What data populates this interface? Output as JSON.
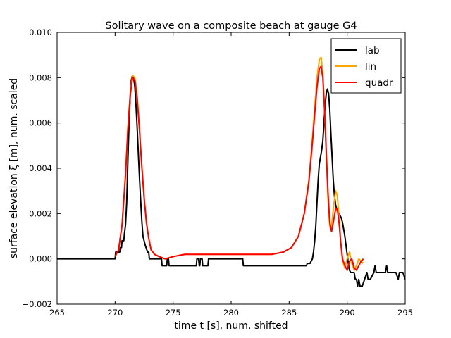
{
  "chart_data": {
    "type": "line",
    "title": "Solitary wave on a composite beach at gauge G4",
    "xlabel": "time  t [s], num. shifted",
    "ylabel": "surface elevation ξ [m], num. scaled",
    "xlim": [
      265,
      295
    ],
    "ylim": [
      -0.002,
      0.01
    ],
    "xticks": [
      265,
      270,
      275,
      280,
      285,
      290,
      295
    ],
    "yticks": [
      -0.002,
      0.0,
      0.002,
      0.004,
      0.006,
      0.008,
      0.01
    ],
    "xtick_labels": [
      "265",
      "270",
      "275",
      "280",
      "285",
      "290",
      "295"
    ],
    "ytick_labels": [
      "−0.002",
      "0.000",
      "0.002",
      "0.004",
      "0.006",
      "0.008",
      "0.010"
    ],
    "grid": false,
    "legend_position": "top-right",
    "series": [
      {
        "name": "lab",
        "color": "#000000",
        "x": [
          265.0,
          270.0,
          270.05,
          270.4,
          270.45,
          270.55,
          270.6,
          270.75,
          270.8,
          270.9,
          271.0,
          271.1,
          271.2,
          271.3,
          271.4,
          271.5,
          271.6,
          271.7,
          271.8,
          271.9,
          272.0,
          272.1,
          272.2,
          272.3,
          272.4,
          272.6,
          272.8,
          272.9,
          272.95,
          273.4,
          273.5,
          274.0,
          274.05,
          274.45,
          274.5,
          274.6,
          274.65,
          276.0,
          276.05,
          277.0,
          277.05,
          277.2,
          277.25,
          277.3,
          277.35,
          277.5,
          277.55,
          278.0,
          278.05,
          281.0,
          281.05,
          286.5,
          286.55,
          286.8,
          286.9,
          287.0,
          287.1,
          287.2,
          287.3,
          287.4,
          287.5,
          287.6,
          287.7,
          287.8,
          287.9,
          288.0,
          288.1,
          288.2,
          288.3,
          288.4,
          288.5,
          288.6,
          288.7,
          288.8,
          288.9,
          289.0,
          289.1,
          289.2,
          289.3,
          289.4,
          289.5,
          289.6,
          289.7,
          289.8,
          289.9,
          290.0,
          290.1,
          290.2,
          290.3,
          290.4,
          290.5,
          290.6,
          290.7,
          290.8,
          290.9,
          291.0,
          291.1,
          291.2,
          291.3,
          291.5,
          291.7,
          291.8,
          292.0,
          292.3,
          292.4,
          292.5,
          292.6,
          292.8,
          293.0,
          293.3,
          293.4,
          293.5,
          293.6,
          293.8,
          294.0,
          294.2,
          294.4,
          294.5,
          294.6,
          294.8,
          295.0
        ],
        "values": [
          0.0,
          0.0,
          0.0003,
          0.0003,
          0.0005,
          0.0005,
          0.0008,
          0.0008,
          0.0011,
          0.0015,
          0.0025,
          0.0043,
          0.006,
          0.0072,
          0.0079,
          0.0081,
          0.008,
          0.0076,
          0.0068,
          0.0058,
          0.0047,
          0.0036,
          0.0026,
          0.0017,
          0.001,
          0.0006,
          0.0003,
          0.0003,
          0.0,
          0.0,
          0.0,
          0.0,
          -0.0003,
          -0.0003,
          0.0,
          0.0,
          -0.0003,
          -0.0003,
          -0.0003,
          -0.0003,
          0.0,
          0.0,
          -0.0003,
          -0.0003,
          0.0,
          0.0,
          -0.0003,
          -0.0003,
          0.0,
          0.0,
          -0.0003,
          -0.0003,
          -0.0002,
          -0.0002,
          -0.0001,
          0.0,
          0.0003,
          0.0008,
          0.0015,
          0.0025,
          0.0035,
          0.0042,
          0.0045,
          0.0048,
          0.0052,
          0.006,
          0.0068,
          0.0073,
          0.0075,
          0.0073,
          0.0066,
          0.0055,
          0.0045,
          0.0035,
          0.0028,
          0.0024,
          0.0022,
          0.0021,
          0.002,
          0.0019,
          0.0018,
          0.0016,
          0.0013,
          0.001,
          0.0006,
          0.0002,
          -0.0002,
          -0.0005,
          -0.0006,
          -0.0006,
          -0.0006,
          -0.0006,
          -0.0009,
          -0.0009,
          -0.0012,
          -0.0009,
          -0.0012,
          -0.0012,
          -0.0012,
          -0.0009,
          -0.0006,
          -0.0009,
          -0.0009,
          -0.0006,
          -0.0003,
          -0.0006,
          -0.0006,
          -0.0006,
          -0.0006,
          -0.0006,
          -0.0003,
          -0.0006,
          -0.0006,
          -0.0006,
          -0.0006,
          -0.0006,
          -0.0009,
          -0.0006,
          -0.0006,
          -0.0006,
          -0.0009
        ]
      },
      {
        "name": "lin",
        "color": "#ffa500",
        "x": [
          270.0,
          270.3,
          270.6,
          270.9,
          271.1,
          271.3,
          271.5,
          271.7,
          271.9,
          272.1,
          272.3,
          272.5,
          272.7,
          272.9,
          273.1,
          273.4,
          273.8,
          274.3,
          275.0,
          276.0,
          278.0,
          280.0,
          282.0,
          283.5,
          284.5,
          285.2,
          285.8,
          286.3,
          286.7,
          287.0,
          287.2,
          287.4,
          287.6,
          287.75,
          287.9,
          288.05,
          288.2,
          288.35,
          288.5,
          288.65,
          288.8,
          289.0,
          289.15,
          289.3,
          289.45,
          289.6,
          289.8,
          290.0,
          290.2,
          290.4,
          290.6,
          290.8,
          291.0,
          291.2,
          291.4
        ],
        "values": [
          0.0001,
          0.0004,
          0.0015,
          0.0038,
          0.0058,
          0.0073,
          0.0081,
          0.008,
          0.0072,
          0.0057,
          0.0041,
          0.0027,
          0.0016,
          0.0009,
          0.0004,
          0.0002,
          0.0001,
          0.0,
          0.0001,
          0.0002,
          0.0002,
          0.0002,
          0.0002,
          0.0002,
          0.0003,
          0.0005,
          0.001,
          0.002,
          0.0035,
          0.0053,
          0.0067,
          0.008,
          0.0088,
          0.0089,
          0.0082,
          0.0066,
          0.0045,
          0.0026,
          0.0014,
          0.0014,
          0.0022,
          0.003,
          0.0028,
          0.0018,
          0.0007,
          -0.0001,
          -0.0004,
          0.0,
          0.0003,
          -0.0002,
          -0.0005,
          -0.0003,
          0.0,
          -0.0001,
          -0.0002
        ]
      },
      {
        "name": "quadr",
        "color": "#ff0000",
        "x": [
          270.0,
          270.3,
          270.6,
          270.9,
          271.1,
          271.3,
          271.5,
          271.7,
          271.9,
          272.1,
          272.3,
          272.5,
          272.7,
          272.9,
          273.1,
          273.4,
          273.8,
          274.3,
          275.0,
          276.0,
          278.0,
          280.0,
          282.0,
          283.5,
          284.5,
          285.2,
          285.8,
          286.3,
          286.7,
          287.0,
          287.2,
          287.4,
          287.6,
          287.75,
          287.9,
          288.05,
          288.2,
          288.35,
          288.5,
          288.65,
          288.8,
          289.0,
          289.15,
          289.3,
          289.45,
          289.6,
          289.8,
          290.0,
          290.2,
          290.4,
          290.6,
          290.8,
          291.0,
          291.2,
          291.4
        ],
        "values": [
          0.0001,
          0.0004,
          0.0015,
          0.0037,
          0.0057,
          0.0072,
          0.008,
          0.0079,
          0.0071,
          0.0057,
          0.0041,
          0.0027,
          0.0016,
          0.0009,
          0.0004,
          0.0002,
          0.0001,
          0.0,
          0.0001,
          0.0002,
          0.0002,
          0.0002,
          0.0002,
          0.0002,
          0.0003,
          0.0005,
          0.001,
          0.002,
          0.0034,
          0.0051,
          0.0064,
          0.0076,
          0.0084,
          0.0085,
          0.008,
          0.0066,
          0.0047,
          0.0029,
          0.0016,
          0.0012,
          0.0016,
          0.0022,
          0.0022,
          0.0016,
          0.0007,
          0.0,
          -0.0003,
          -0.0005,
          -0.0001,
          0.0,
          -0.0004,
          -0.0005,
          -0.0003,
          -0.0001,
          0.0
        ]
      }
    ]
  }
}
